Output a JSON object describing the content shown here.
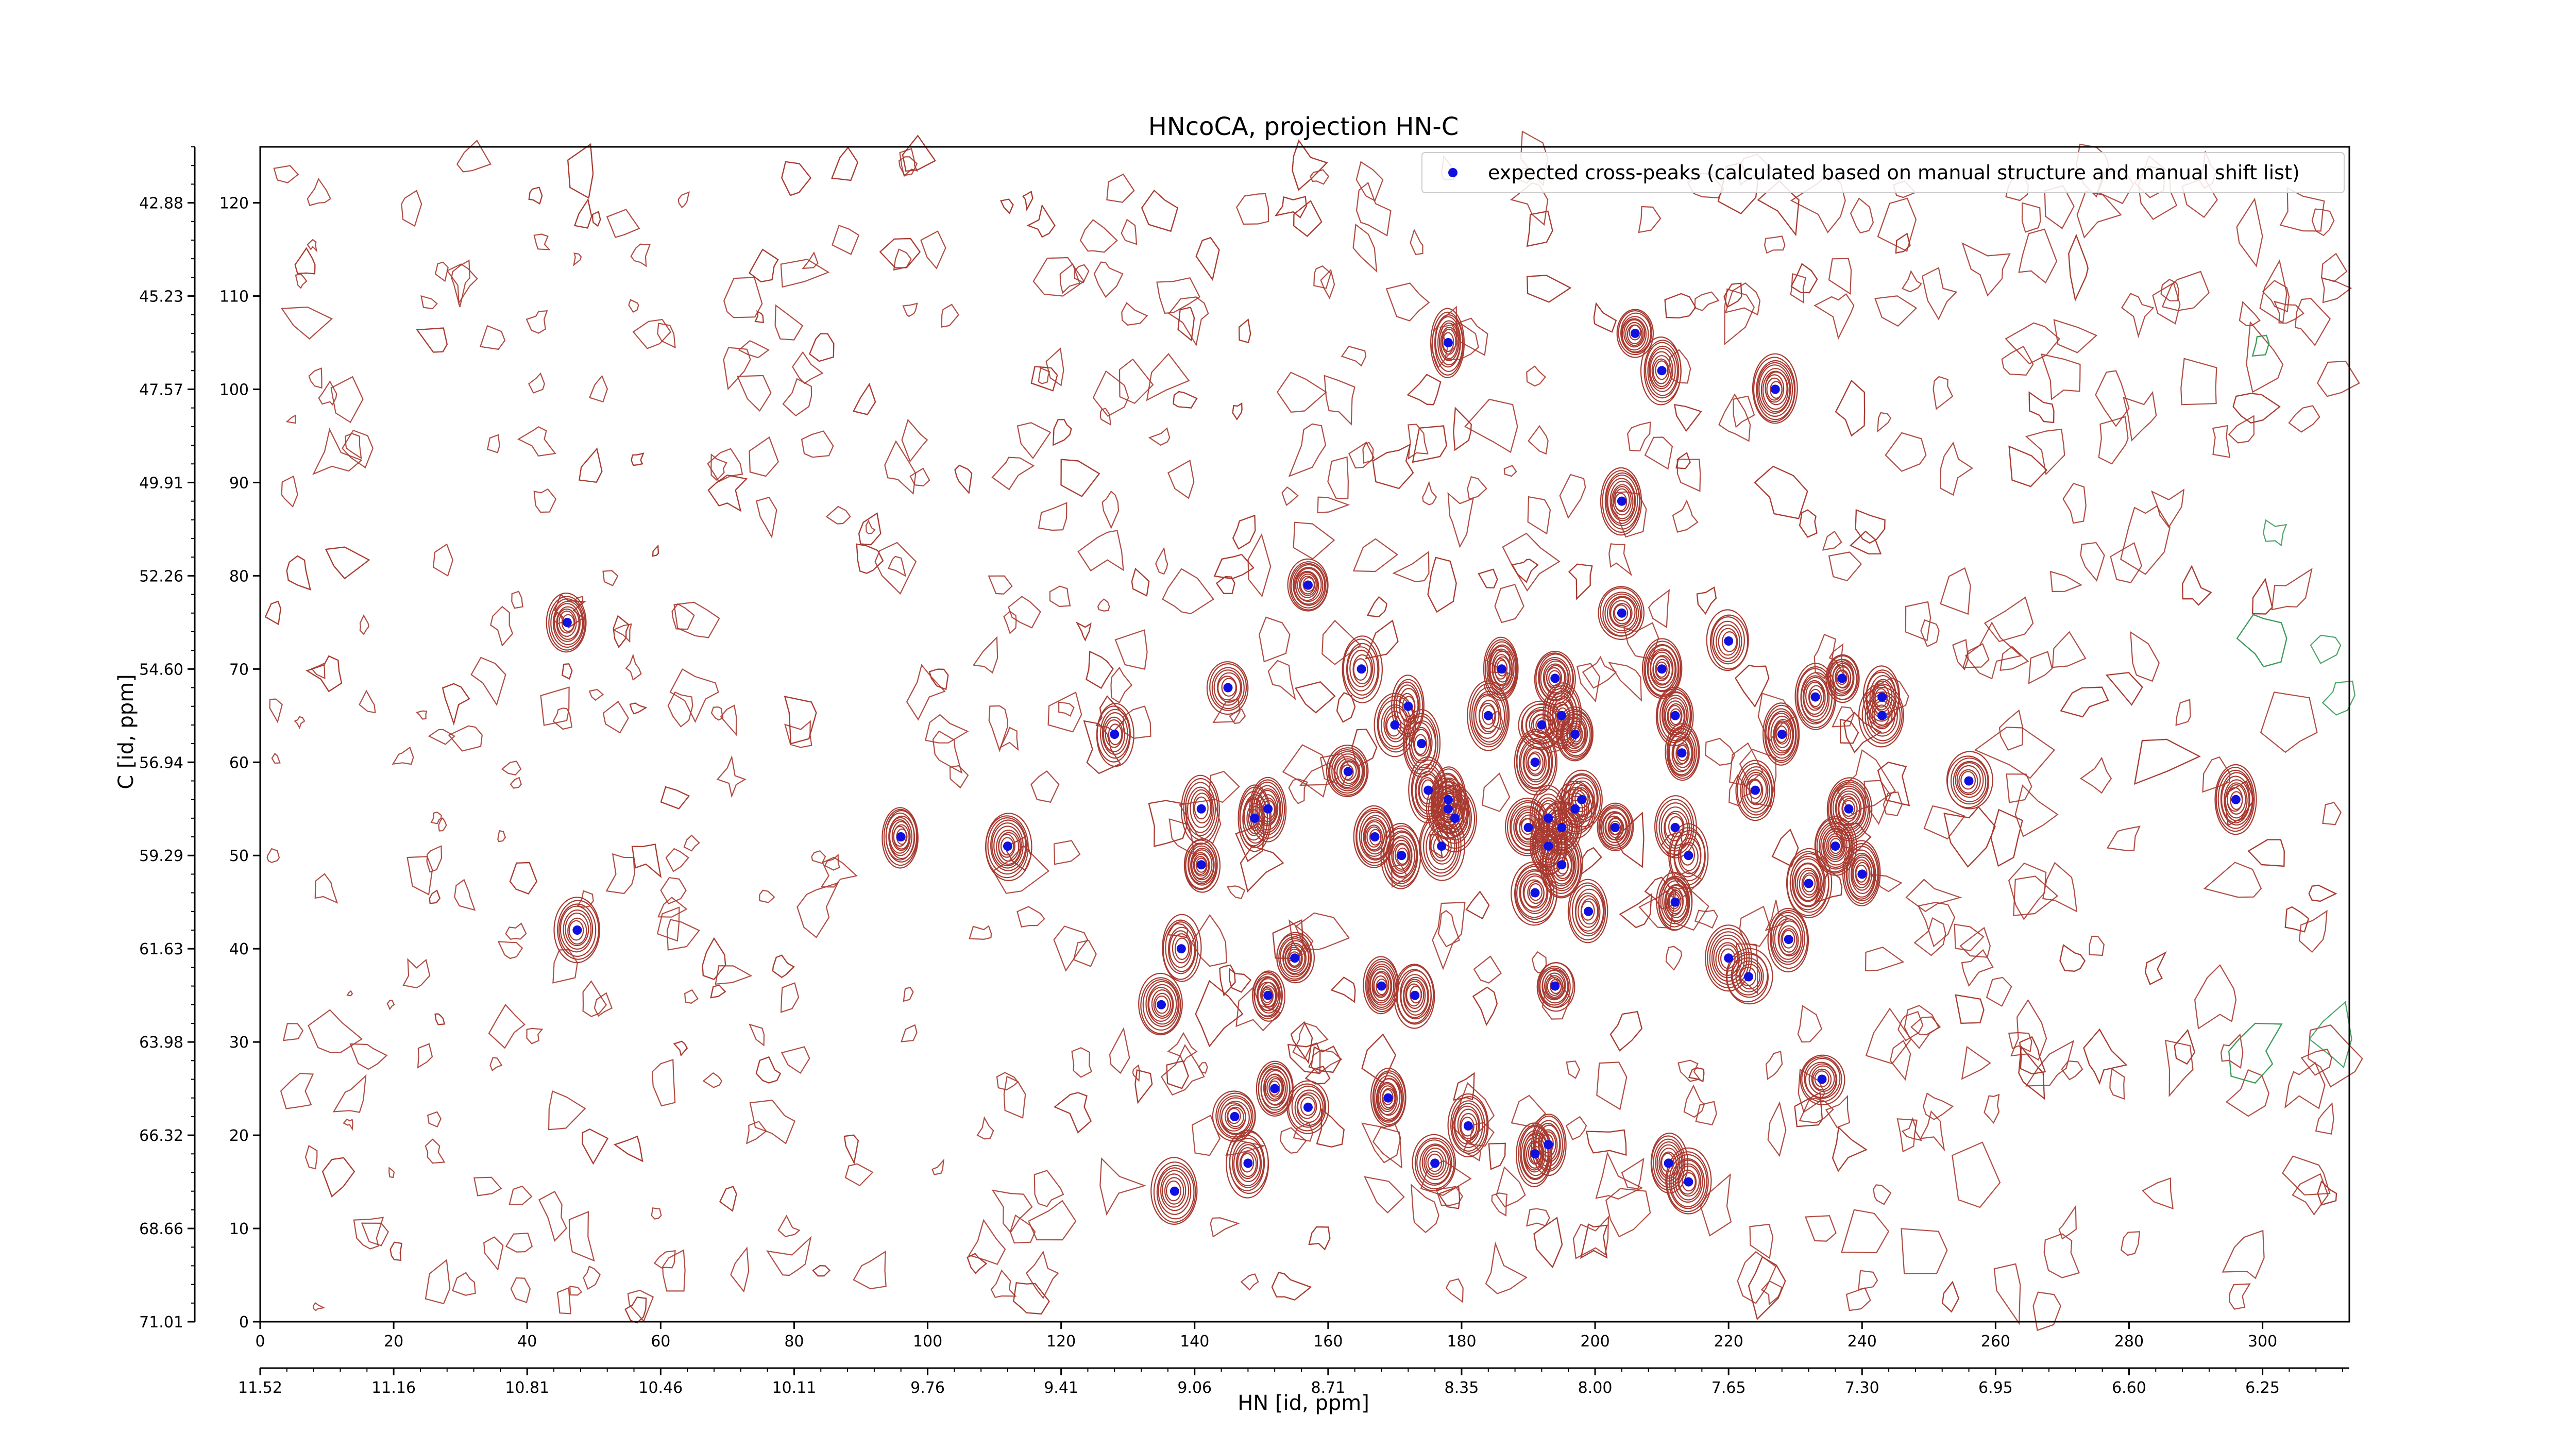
{
  "chart_data": {
    "type": "scatter",
    "title": "HNcoCA, projection HN-C",
    "xlabel": "HN [id, ppm]",
    "ylabel": "C [id, ppm]",
    "x_index_ticks": [
      "0",
      "20",
      "40",
      "60",
      "80",
      "100",
      "120",
      "140",
      "160",
      "180",
      "200",
      "220",
      "240",
      "260",
      "280",
      "300"
    ],
    "x_ppm_ticks": [
      "11.52",
      "11.16",
      "10.81",
      "10.46",
      "10.11",
      "9.76",
      "9.41",
      "9.06",
      "8.71",
      "8.35",
      "8.00",
      "7.65",
      "7.30",
      "6.95",
      "6.60",
      "6.25"
    ],
    "y_index_ticks": [
      "0",
      "10",
      "20",
      "30",
      "40",
      "50",
      "60",
      "70",
      "80",
      "90",
      "100",
      "110",
      "120"
    ],
    "y_ppm_ticks": [
      "71.01",
      "68.66",
      "66.32",
      "63.98",
      "61.63",
      "59.29",
      "56.94",
      "54.60",
      "52.26",
      "49.91",
      "47.57",
      "45.23",
      "42.88"
    ],
    "xlim": [
      0,
      313
    ],
    "ylim": [
      0,
      126
    ],
    "grid": false,
    "legend": {
      "position": "top-right",
      "label": "expected cross-peaks (calculated based on manual structure and manual shift list)"
    },
    "colors": {
      "peaks": "#1010e0",
      "contours": "#a83a30",
      "negative_contours": "#3a9a5a"
    },
    "series": [
      {
        "name": "expected cross-peaks (calculated based on manual structure and manual shift list)",
        "points": [
          [
            46,
            75
          ],
          [
            47.5,
            42
          ],
          [
            96,
            52
          ],
          [
            112,
            51
          ],
          [
            128,
            63
          ],
          [
            135,
            34
          ],
          [
            138,
            40
          ],
          [
            137,
            14
          ],
          [
            141,
            55
          ],
          [
            141,
            49
          ],
          [
            145,
            68
          ],
          [
            146,
            22
          ],
          [
            148,
            17
          ],
          [
            149,
            54
          ],
          [
            151,
            55
          ],
          [
            151,
            35
          ],
          [
            152,
            25
          ],
          [
            155,
            39
          ],
          [
            157,
            23
          ],
          [
            157,
            79
          ],
          [
            163,
            59
          ],
          [
            165,
            70
          ],
          [
            167,
            52
          ],
          [
            168,
            36
          ],
          [
            169,
            24
          ],
          [
            170,
            64
          ],
          [
            171,
            50
          ],
          [
            172,
            66
          ],
          [
            173,
            35
          ],
          [
            174,
            62
          ],
          [
            175,
            57
          ],
          [
            176,
            17
          ],
          [
            177,
            51
          ],
          [
            178,
            55
          ],
          [
            178,
            56
          ],
          [
            179,
            54
          ],
          [
            181,
            21
          ],
          [
            184,
            65
          ],
          [
            186,
            70
          ],
          [
            190,
            53
          ],
          [
            191,
            18
          ],
          [
            191,
            46
          ],
          [
            191,
            60
          ],
          [
            192,
            64
          ],
          [
            193,
            54
          ],
          [
            193,
            51
          ],
          [
            193,
            19
          ],
          [
            194,
            36
          ],
          [
            194,
            69
          ],
          [
            195,
            65
          ],
          [
            195,
            49
          ],
          [
            195,
            53
          ],
          [
            197,
            55
          ],
          [
            197,
            63
          ],
          [
            198,
            56
          ],
          [
            199,
            44
          ],
          [
            203,
            53
          ],
          [
            204,
            76
          ],
          [
            204,
            88
          ],
          [
            206,
            106
          ],
          [
            210,
            102
          ],
          [
            210,
            70
          ],
          [
            211,
            17
          ],
          [
            212,
            65
          ],
          [
            212,
            53
          ],
          [
            212,
            45
          ],
          [
            213,
            61
          ],
          [
            214,
            15
          ],
          [
            214,
            50
          ],
          [
            220,
            73
          ],
          [
            220,
            39
          ],
          [
            223,
            37
          ],
          [
            224,
            57
          ],
          [
            227,
            100
          ],
          [
            228,
            63
          ],
          [
            229,
            41
          ],
          [
            232,
            47
          ],
          [
            233,
            67
          ],
          [
            234,
            26
          ],
          [
            236,
            51
          ],
          [
            237,
            69
          ],
          [
            238,
            55
          ],
          [
            240,
            48
          ],
          [
            243,
            65
          ],
          [
            243,
            67
          ],
          [
            256,
            58
          ],
          [
            296,
            56
          ],
          [
            178,
            105
          ]
        ]
      }
    ]
  }
}
